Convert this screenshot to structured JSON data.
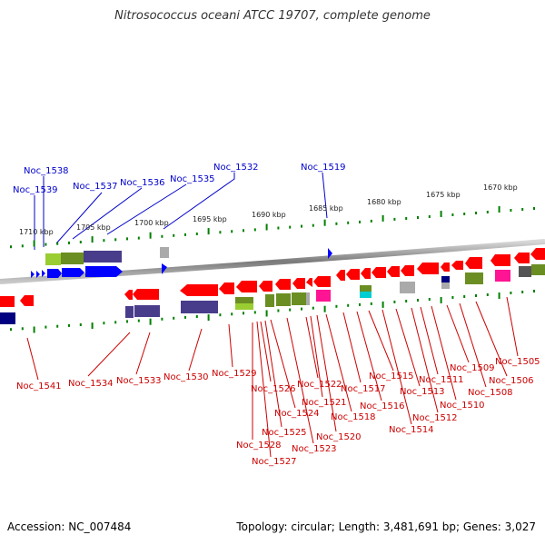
{
  "title": "Nitrosococcus oceani ATCC 19707, complete genome",
  "footer": {
    "accession": "Accession: NC_007484",
    "summary": "Topology: circular; Length: 3,481,691 bp; Genes: 3,027"
  },
  "colors": {
    "forward_label": "#0000cc",
    "reverse_label": "#cc0000",
    "forward_gene": "#0000ff",
    "reverse_gene": "#ff0000",
    "backbone": "#888888",
    "tick": "#008000"
  },
  "scale_labels": [
    "1710 kbp",
    "1705 kbp",
    "1700 kbp",
    "1695 kbp",
    "1690 kbp",
    "1685 kbp",
    "1680 kbp",
    "1675 kbp",
    "1670 kbp"
  ],
  "forward_genes": [
    "Noc_1539",
    "Noc_1538",
    "Noc_1537",
    "Noc_1536",
    "Noc_1535",
    "Noc_1532",
    "Noc_1519"
  ],
  "reverse_genes": [
    "Noc_1541",
    "Noc_1534",
    "Noc_1533",
    "Noc_1530",
    "Noc_1529",
    "Noc_1528",
    "Noc_1527",
    "Noc_1526",
    "Noc_1525",
    "Noc_1524",
    "Noc_1523",
    "Noc_1522",
    "Noc_1521",
    "Noc_1520",
    "Noc_1518",
    "Noc_1517",
    "Noc_1516",
    "Noc_1515",
    "Noc_1514",
    "Noc_1513",
    "Noc_1512",
    "Noc_1511",
    "Noc_1510",
    "Noc_1509",
    "Noc_1508",
    "Noc_1506",
    "Noc_1505"
  ]
}
